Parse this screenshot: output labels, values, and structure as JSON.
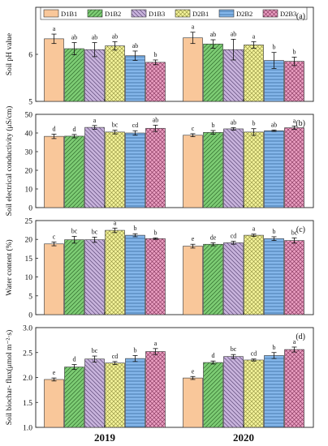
{
  "legend": {
    "items": [
      {
        "key": "D1B1",
        "label": "D1B1"
      },
      {
        "key": "D1B2",
        "label": "D1B2"
      },
      {
        "key": "D1B3",
        "label": "D1B3"
      },
      {
        "key": "D2B1",
        "label": "D2B1"
      },
      {
        "key": "D2B2",
        "label": "D2B2"
      },
      {
        "key": "D2B3",
        "label": "D2B3"
      }
    ]
  },
  "colors": {
    "D1B1": "#f9c79a",
    "D1B2": "#7dcc74",
    "D1B3": "#c8b3dc",
    "D2B1": "#f4f39a",
    "D2B2": "#84b6ea",
    "D2B3": "#eb9fc2"
  },
  "chart_data": [
    {
      "type": "bar",
      "panel_label": "(a)",
      "ylabel": "Soil pH value",
      "ylim": [
        5,
        7
      ],
      "yticks": [
        5,
        6
      ],
      "categories": [
        "2019",
        "2020"
      ],
      "series": [
        {
          "name": "D1B1",
          "values": [
            6.33,
            6.35
          ],
          "errors": [
            0.1,
            0.12
          ],
          "letters": [
            "a",
            "a"
          ]
        },
        {
          "name": "D1B2",
          "values": [
            6.12,
            6.22
          ],
          "errors": [
            0.13,
            0.09
          ],
          "letters": [
            "ab",
            "ab"
          ]
        },
        {
          "name": "D1B3",
          "values": [
            6.1,
            6.1
          ],
          "errors": [
            0.15,
            0.22
          ],
          "letters": [
            "ab",
            "ab"
          ]
        },
        {
          "name": "D2B1",
          "values": [
            6.18,
            6.2
          ],
          "errors": [
            0.09,
            0.07
          ],
          "letters": [
            "ab",
            "a"
          ]
        },
        {
          "name": "D2B2",
          "values": [
            5.97,
            5.87
          ],
          "errors": [
            0.1,
            0.17
          ],
          "letters": [
            "ab",
            "b"
          ]
        },
        {
          "name": "D2B3",
          "values": [
            5.83,
            5.85
          ],
          "errors": [
            0.05,
            0.09
          ],
          "letters": [
            "b",
            "b"
          ]
        }
      ]
    },
    {
      "type": "bar",
      "panel_label": "(b)",
      "ylabel": "Soil electrical conductivity (μS/cm)",
      "ylim": [
        0,
        50
      ],
      "yticks": [
        0,
        10,
        20,
        30,
        40,
        50
      ],
      "categories": [
        "2019",
        "2020"
      ],
      "series": [
        {
          "name": "D1B1",
          "values": [
            38.2,
            38.8
          ],
          "errors": [
            1.2,
            0.8
          ],
          "letters": [
            "d",
            "c"
          ]
        },
        {
          "name": "D1B2",
          "values": [
            38.3,
            40.3
          ],
          "errors": [
            0.9,
            1.0
          ],
          "letters": [
            "d",
            "b"
          ]
        },
        {
          "name": "D1B3",
          "values": [
            43.0,
            42.2
          ],
          "errors": [
            1.0,
            0.7
          ],
          "letters": [
            "a",
            "ab"
          ]
        },
        {
          "name": "D2B1",
          "values": [
            40.5,
            40.5
          ],
          "errors": [
            1.0,
            1.8
          ],
          "letters": [
            "bc",
            "b"
          ]
        },
        {
          "name": "D2B2",
          "values": [
            40.0,
            41.2
          ],
          "errors": [
            1.2,
            0.4
          ],
          "letters": [
            "cd",
            "ab"
          ]
        },
        {
          "name": "D2B3",
          "values": [
            42.5,
            42.8
          ],
          "errors": [
            1.7,
            0.9
          ],
          "letters": [
            "ab",
            "a"
          ]
        }
      ]
    },
    {
      "type": "bar",
      "panel_label": "(c)",
      "ylabel": "Water content (%)",
      "ylim": [
        0,
        25
      ],
      "yticks": [
        0,
        5,
        10,
        15,
        20,
        25
      ],
      "categories": [
        "2019",
        "2020"
      ],
      "series": [
        {
          "name": "D1B1",
          "values": [
            18.8,
            18.2
          ],
          "errors": [
            0.5,
            0.5
          ],
          "letters": [
            "c",
            "e"
          ]
        },
        {
          "name": "D1B2",
          "values": [
            19.9,
            18.7
          ],
          "errors": [
            0.9,
            0.4
          ],
          "letters": [
            "bc",
            "de"
          ]
        },
        {
          "name": "D1B3",
          "values": [
            19.9,
            19.1
          ],
          "errors": [
            0.7,
            0.4
          ],
          "letters": [
            "bc",
            "cd"
          ]
        },
        {
          "name": "D2B1",
          "values": [
            22.4,
            21.1
          ],
          "errors": [
            0.6,
            0.3
          ],
          "letters": [
            "a",
            "a"
          ]
        },
        {
          "name": "D2B2",
          "values": [
            21.1,
            20.2
          ],
          "errors": [
            0.4,
            0.5
          ],
          "letters": [
            "b",
            "b"
          ]
        },
        {
          "name": "D2B3",
          "values": [
            20.2,
            19.7
          ],
          "errors": [
            0.2,
            0.7
          ],
          "letters": [
            "b",
            "bc"
          ]
        }
      ]
    },
    {
      "type": "bar",
      "panel_label": "(d)",
      "ylabel": "Soil biochar- flux(μmol m⁻²·s)",
      "ylim": [
        1.0,
        3.0
      ],
      "yticks": [
        1.0,
        1.5,
        2.0,
        2.5,
        3.0
      ],
      "yticklabels": [
        "1.0",
        "1.5",
        "2.0",
        "2.5",
        "3.0"
      ],
      "categories": [
        "2019",
        "2020"
      ],
      "series": [
        {
          "name": "D1B1",
          "values": [
            1.96,
            1.99
          ],
          "errors": [
            0.03,
            0.03
          ],
          "letters": [
            "e",
            "e"
          ]
        },
        {
          "name": "D1B2",
          "values": [
            2.21,
            2.3
          ],
          "errors": [
            0.05,
            0.03
          ],
          "letters": [
            "d",
            "d"
          ]
        },
        {
          "name": "D1B3",
          "values": [
            2.37,
            2.42
          ],
          "errors": [
            0.06,
            0.04
          ],
          "letters": [
            "bc",
            "bc"
          ]
        },
        {
          "name": "D2B1",
          "values": [
            2.29,
            2.35
          ],
          "errors": [
            0.03,
            0.02
          ],
          "letters": [
            "cd",
            "cd"
          ]
        },
        {
          "name": "D2B2",
          "values": [
            2.38,
            2.44
          ],
          "errors": [
            0.06,
            0.06
          ],
          "letters": [
            "b",
            "b"
          ]
        },
        {
          "name": "D2B3",
          "values": [
            2.52,
            2.56
          ],
          "errors": [
            0.06,
            0.05
          ],
          "letters": [
            "a",
            "a"
          ]
        }
      ]
    }
  ]
}
